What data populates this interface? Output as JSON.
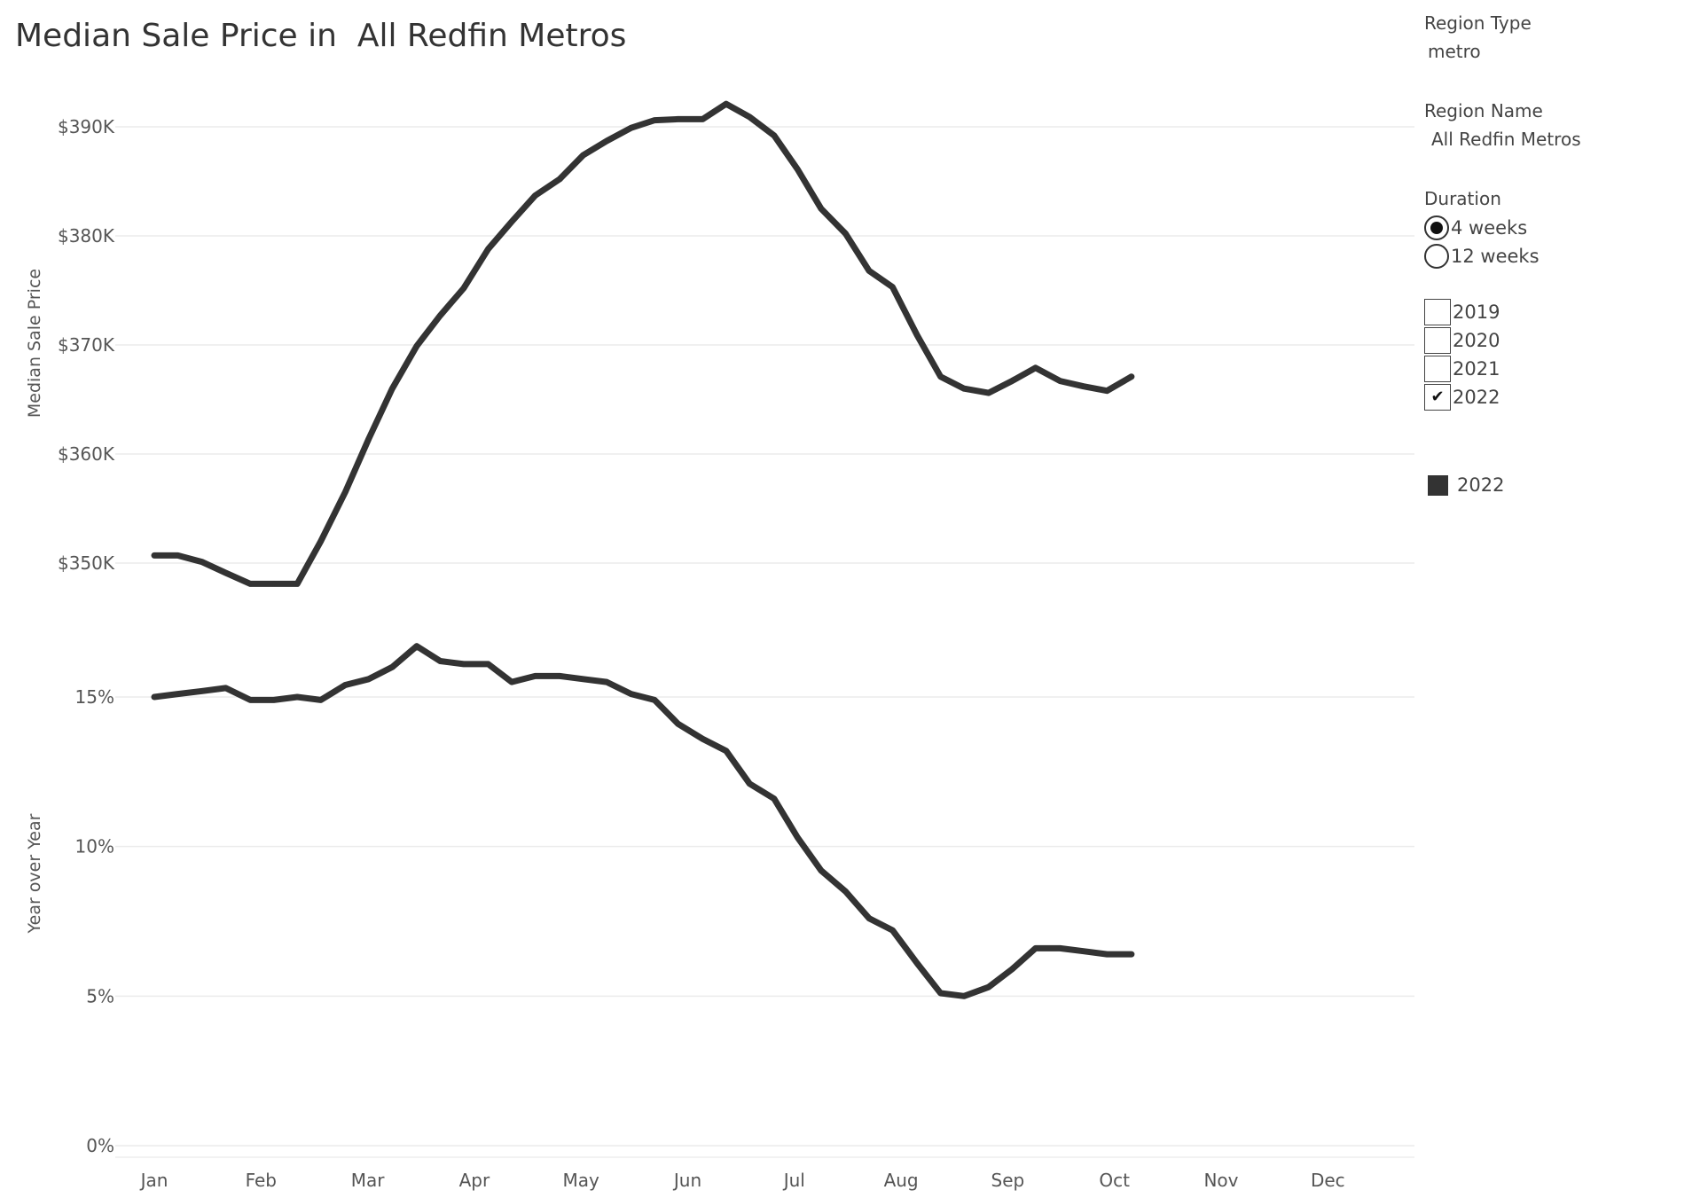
{
  "title": "Median Sale Price in  All Redfin Metros",
  "filters": {
    "region_type": {
      "label": "Region Type",
      "value": "metro"
    },
    "region_name": {
      "label": "Region Name",
      "value": "All Redfin Metros"
    },
    "duration": {
      "label": "Duration",
      "options": [
        {
          "label": "4 weeks",
          "selected": true
        },
        {
          "label": "12 weeks",
          "selected": false
        }
      ]
    },
    "years": [
      {
        "label": "2019",
        "checked": false
      },
      {
        "label": "2020",
        "checked": false
      },
      {
        "label": "2021",
        "checked": false
      },
      {
        "label": "2022",
        "checked": true
      }
    ],
    "check_mark": "✔"
  },
  "legend": {
    "label": "2022",
    "color": "#333333"
  },
  "colors": {
    "line": "#333333",
    "grid": "#ececec",
    "text": "#555555"
  },
  "chart_data": [
    {
      "type": "line",
      "ylabel": "Median Sale Price",
      "xlabel": "",
      "ylim": [
        349000,
        392000
      ],
      "yticks": [
        350000,
        360000,
        370000,
        380000,
        390000
      ],
      "ytick_labels": [
        "$350K",
        "$360K",
        "$370K",
        "$380K",
        "$390K"
      ],
      "series": [
        {
          "name": "2022",
          "x": [
            0.0,
            0.22,
            0.45,
            0.67,
            0.9,
            1.12,
            1.34,
            1.56,
            1.79,
            2.01,
            2.23,
            2.46,
            2.68,
            2.9,
            3.13,
            3.35,
            3.57,
            3.8,
            4.02,
            4.24,
            4.47,
            4.69,
            4.91,
            5.14,
            5.36,
            5.58,
            5.81,
            6.03,
            6.25,
            6.48,
            6.7,
            6.92,
            7.15,
            7.37,
            7.59,
            7.82,
            8.04,
            8.26,
            8.49,
            8.71,
            8.93,
            9.16
          ],
          "values": [
            350700,
            350700,
            350100,
            349100,
            348100,
            348100,
            348100,
            352000,
            356500,
            361400,
            366000,
            369900,
            372700,
            375200,
            378800,
            381300,
            383700,
            385200,
            387400,
            388700,
            389900,
            390600,
            390700,
            390700,
            392100,
            390900,
            389200,
            386100,
            382500,
            380200,
            376800,
            375300,
            370900,
            367100,
            366000,
            365600,
            366700,
            367900,
            366700,
            366200,
            365800,
            367100
          ]
        }
      ]
    },
    {
      "type": "line",
      "ylabel": "Year over Year",
      "xlabel": "",
      "ylim": [
        0,
        17
      ],
      "yticks": [
        0,
        5,
        10,
        15
      ],
      "ytick_labels": [
        "0%",
        "5%",
        "10%",
        "15%"
      ],
      "series": [
        {
          "name": "2022",
          "x": [
            0.0,
            0.22,
            0.45,
            0.67,
            0.9,
            1.12,
            1.34,
            1.56,
            1.79,
            2.01,
            2.23,
            2.46,
            2.68,
            2.9,
            3.13,
            3.35,
            3.57,
            3.8,
            4.02,
            4.24,
            4.47,
            4.69,
            4.91,
            5.14,
            5.36,
            5.58,
            5.81,
            6.03,
            6.25,
            6.48,
            6.7,
            6.92,
            7.15,
            7.37,
            7.59,
            7.82,
            8.04,
            8.26,
            8.49,
            8.71,
            8.93,
            9.16
          ],
          "values": [
            15.0,
            15.1,
            15.2,
            15.3,
            14.9,
            14.9,
            15.0,
            14.9,
            15.4,
            15.6,
            16.0,
            16.7,
            16.2,
            16.1,
            16.1,
            15.5,
            15.7,
            15.7,
            15.6,
            15.5,
            15.1,
            14.9,
            14.1,
            13.6,
            13.2,
            12.1,
            11.6,
            10.3,
            9.2,
            8.5,
            7.6,
            7.2,
            6.1,
            5.1,
            5.0,
            5.3,
            5.9,
            6.6,
            6.6,
            6.5,
            6.4,
            6.4
          ]
        }
      ]
    }
  ],
  "x_axis": {
    "tick_labels": [
      "Jan",
      "Feb",
      "Mar",
      "Apr",
      "May",
      "Jun",
      "Jul",
      "Aug",
      "Sep",
      "Oct",
      "Nov",
      "Dec"
    ]
  }
}
